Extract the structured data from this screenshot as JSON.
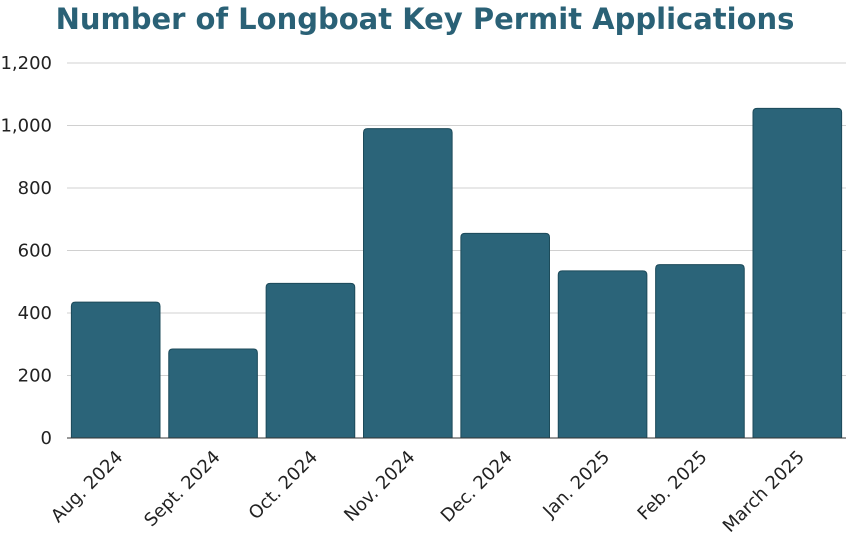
{
  "chart_data": {
    "type": "bar",
    "title": "Number of Longboat Key Permit Applications",
    "xlabel": "",
    "ylabel": "",
    "categories": [
      "Aug. 2024",
      "Sept. 2024",
      "Oct. 2024",
      "Nov. 2024",
      "Dec. 2024",
      "Jan. 2025",
      "Feb. 2025",
      "March 2025"
    ],
    "values": [
      435,
      285,
      495,
      990,
      655,
      535,
      555,
      1055
    ],
    "ylim": [
      0,
      1200
    ],
    "yticks": [
      0,
      200,
      400,
      600,
      800,
      1000,
      1200
    ],
    "ytick_labels": [
      "0",
      "200",
      "400",
      "600",
      "800",
      "1,000",
      "1,200"
    ],
    "grid": true,
    "legend": "none",
    "colors": {
      "bar": "#2b6479",
      "bar_edge": "#1c4a5a",
      "title": "#2a6176",
      "grid": "#d0d0d0",
      "axis": "#333333"
    }
  }
}
